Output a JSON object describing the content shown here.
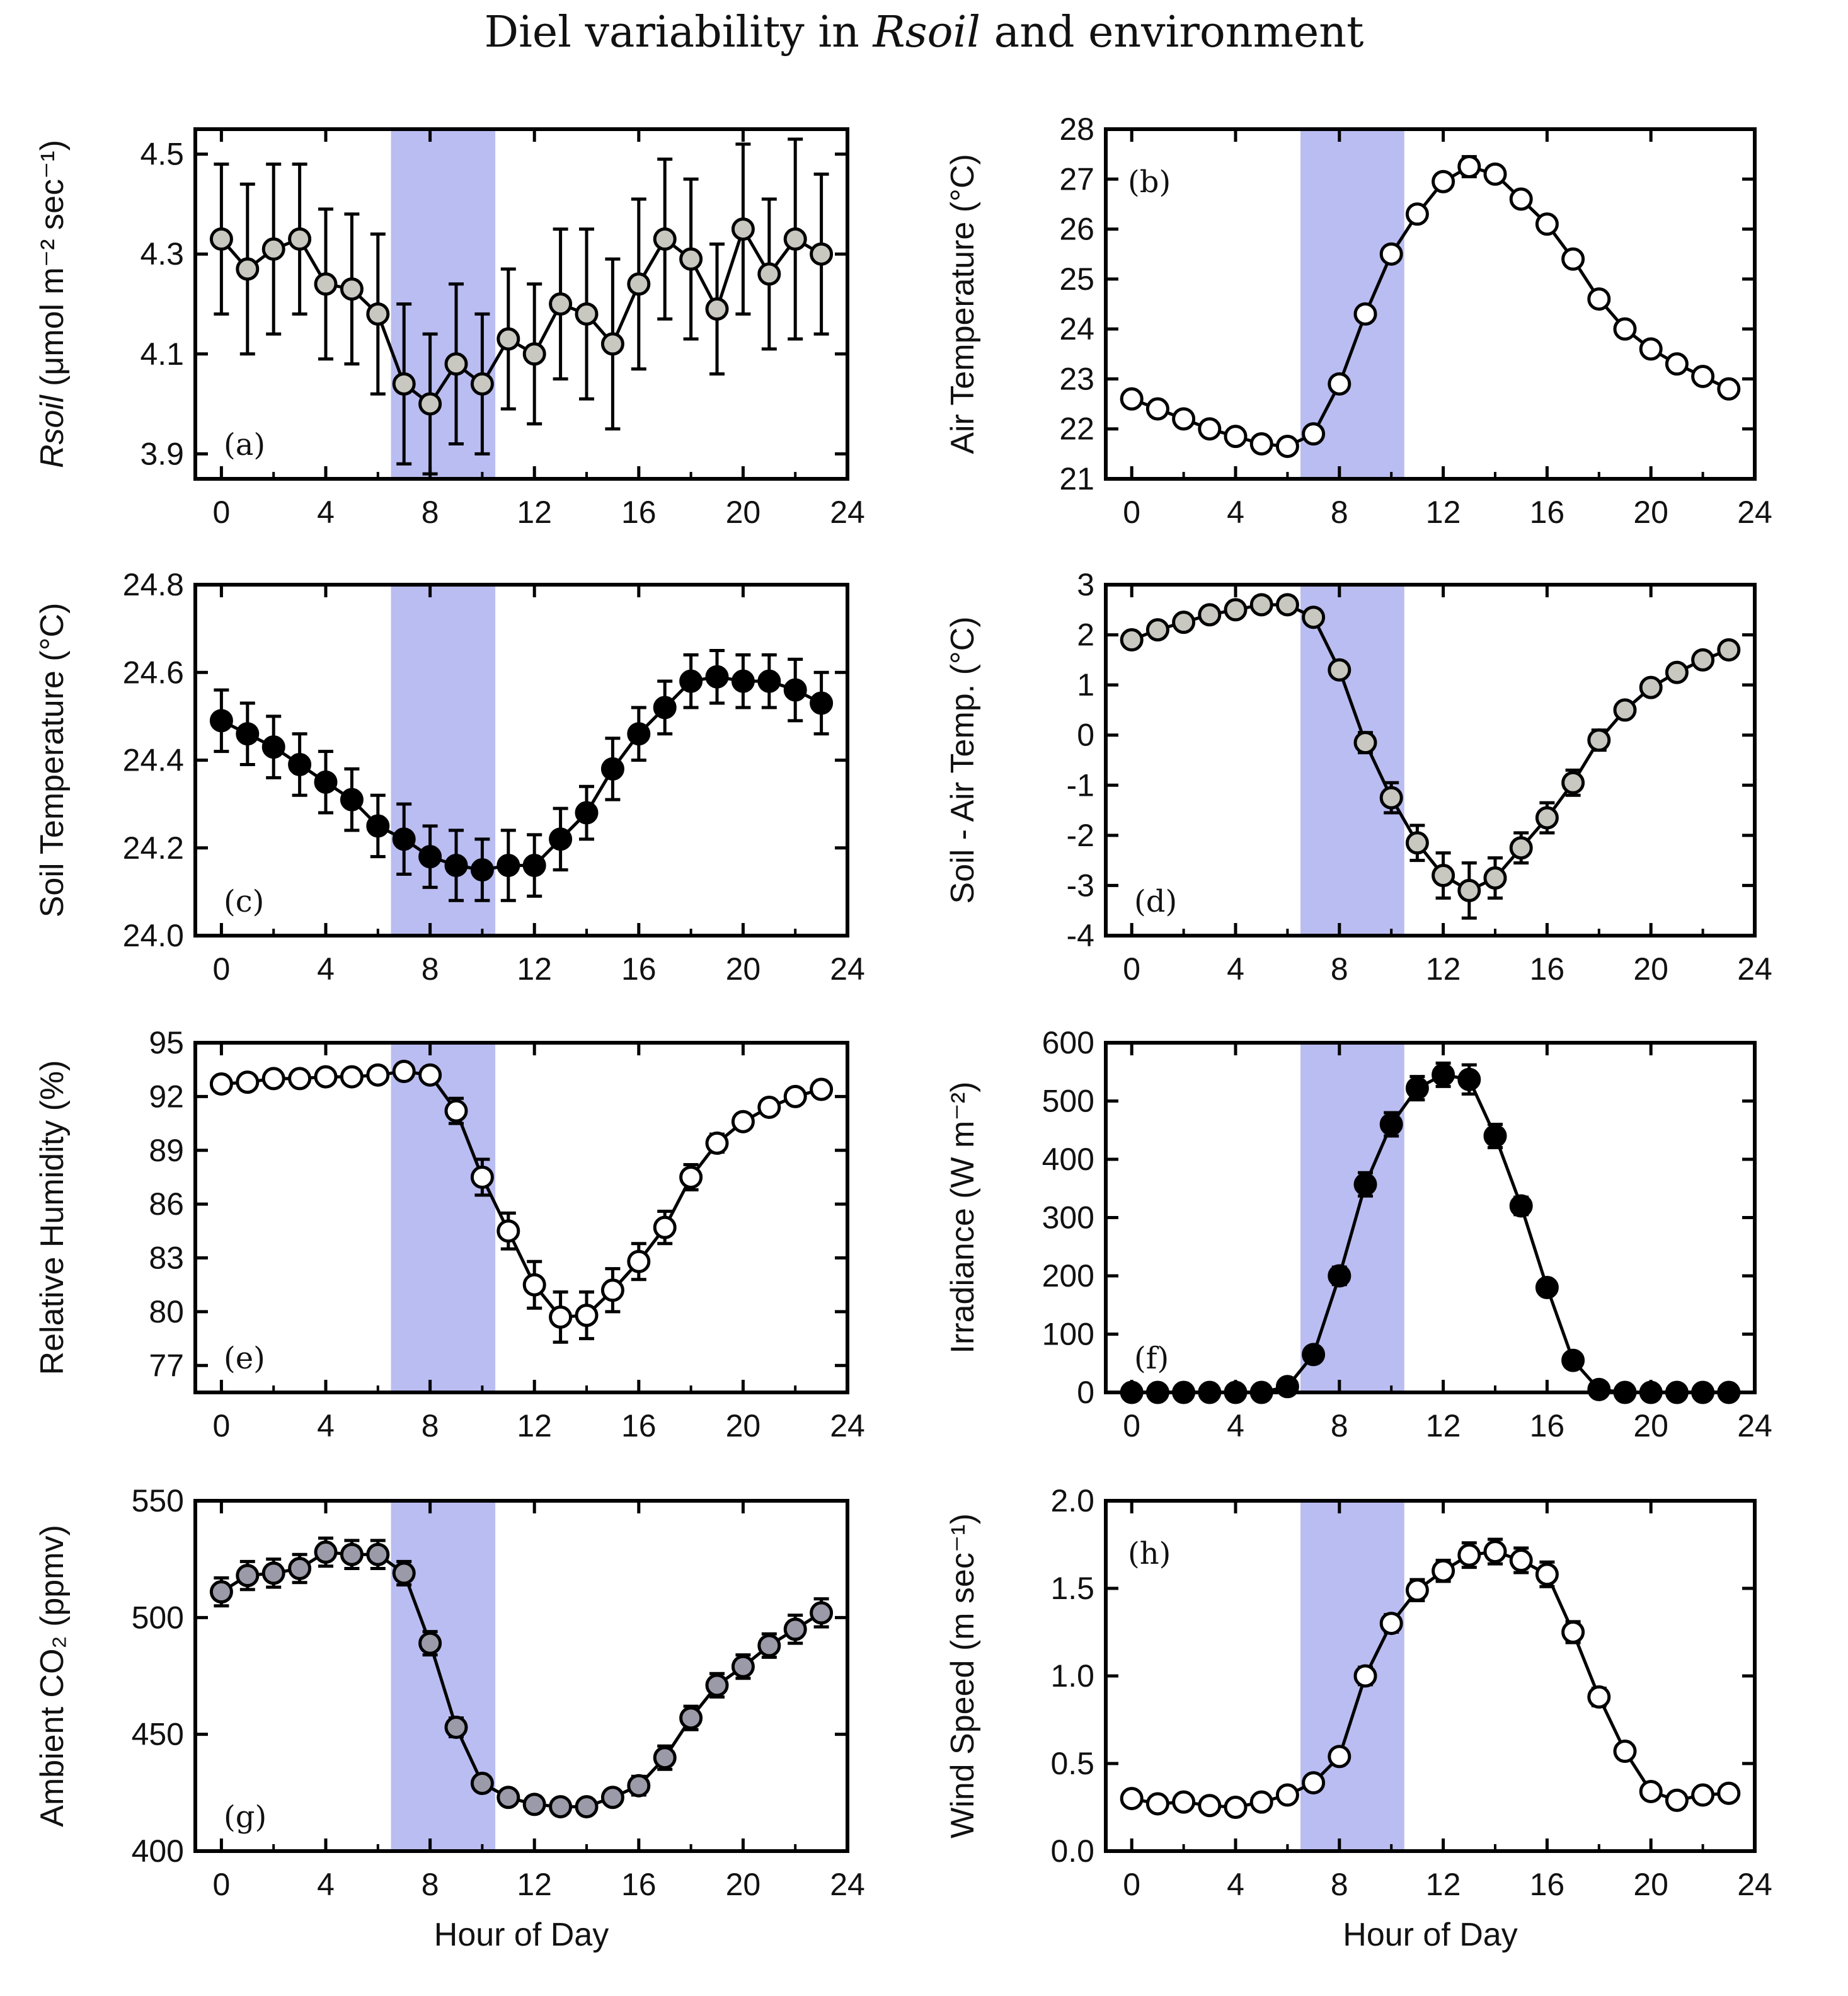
{
  "title": {
    "pre": "Diel variability in ",
    "italic": "Rsoil",
    "post": " and environment"
  },
  "colors": {
    "shade": "#b3b6ef",
    "line": "#000000",
    "fill_grey": "#c8c8c0",
    "fill_black": "#000000",
    "fill_white": "#ffffff",
    "fill_purple": "#9a9aa8"
  },
  "chart_data": [
    {
      "id": "a",
      "type": "line",
      "panel_label": "(a)",
      "ylabel_italic": "Rsoil",
      "ylabel": " (μmol m⁻² sec⁻¹)",
      "xlabel": "",
      "xlim": [
        -1,
        24
      ],
      "ylim": [
        3.85,
        4.55
      ],
      "xticks": [
        0,
        4,
        8,
        12,
        16,
        20,
        24
      ],
      "yticks": [
        "3.9",
        "4.1",
        "4.3",
        "4.5"
      ],
      "shade": [
        6.5,
        10.5
      ],
      "marker_fill": "fill_grey",
      "x": [
        0,
        1,
        2,
        3,
        4,
        5,
        6,
        7,
        8,
        9,
        10,
        11,
        12,
        13,
        14,
        15,
        16,
        17,
        18,
        19,
        20,
        21,
        22,
        23
      ],
      "y": [
        4.33,
        4.27,
        4.31,
        4.33,
        4.24,
        4.23,
        4.18,
        4.04,
        4.0,
        4.08,
        4.04,
        4.13,
        4.1,
        4.2,
        4.18,
        4.12,
        4.24,
        4.33,
        4.29,
        4.19,
        4.35,
        4.26,
        4.33,
        4.3
      ],
      "err": [
        0.15,
        0.17,
        0.17,
        0.15,
        0.15,
        0.15,
        0.16,
        0.16,
        0.14,
        0.16,
        0.14,
        0.14,
        0.14,
        0.15,
        0.17,
        0.17,
        0.17,
        0.16,
        0.16,
        0.13,
        0.17,
        0.15,
        0.2,
        0.16
      ]
    },
    {
      "id": "b",
      "type": "line",
      "panel_label": "(b)",
      "ylabel": "Air Temperature (°C)",
      "xlabel": "",
      "xlim": [
        -1,
        24
      ],
      "ylim": [
        21,
        28
      ],
      "xticks": [
        0,
        4,
        8,
        12,
        16,
        20,
        24
      ],
      "yticks": [
        "21",
        "22",
        "23",
        "24",
        "25",
        "26",
        "27",
        "28"
      ],
      "shade": [
        6.5,
        10.5
      ],
      "marker_fill": "fill_white",
      "x": [
        0,
        1,
        2,
        3,
        4,
        5,
        6,
        7,
        8,
        9,
        10,
        11,
        12,
        13,
        14,
        15,
        16,
        17,
        18,
        19,
        20,
        21,
        22,
        23
      ],
      "y": [
        22.6,
        22.4,
        22.2,
        22.0,
        21.85,
        21.7,
        21.65,
        21.9,
        22.9,
        24.3,
        25.5,
        26.3,
        26.95,
        27.25,
        27.1,
        26.6,
        26.1,
        25.4,
        24.6,
        24.0,
        23.6,
        23.3,
        23.05,
        22.8
      ],
      "err": [
        0.05,
        0.05,
        0.05,
        0.05,
        0.05,
        0.05,
        0.05,
        0.06,
        0.08,
        0.1,
        0.1,
        0.1,
        0.12,
        0.2,
        0.15,
        0.1,
        0.08,
        0.06,
        0.05,
        0.05,
        0.05,
        0.05,
        0.05,
        0.05
      ]
    },
    {
      "id": "c",
      "type": "line",
      "panel_label": "(c)",
      "ylabel": "Soil Temperature (°C)",
      "xlabel": "",
      "xlim": [
        -1,
        24
      ],
      "ylim": [
        24.0,
        24.8
      ],
      "xticks": [
        0,
        4,
        8,
        12,
        16,
        20,
        24
      ],
      "yticks": [
        "24.0",
        "24.2",
        "24.4",
        "24.6",
        "24.8"
      ],
      "shade": [
        6.5,
        10.5
      ],
      "marker_fill": "fill_black",
      "x": [
        0,
        1,
        2,
        3,
        4,
        5,
        6,
        7,
        8,
        9,
        10,
        11,
        12,
        13,
        14,
        15,
        16,
        17,
        18,
        19,
        20,
        21,
        22,
        23
      ],
      "y": [
        24.49,
        24.46,
        24.43,
        24.39,
        24.35,
        24.31,
        24.25,
        24.22,
        24.18,
        24.16,
        24.15,
        24.16,
        24.16,
        24.22,
        24.28,
        24.38,
        24.46,
        24.52,
        24.58,
        24.59,
        24.58,
        24.58,
        24.56,
        24.53
      ],
      "err": [
        0.07,
        0.07,
        0.07,
        0.07,
        0.07,
        0.07,
        0.07,
        0.08,
        0.07,
        0.08,
        0.07,
        0.08,
        0.07,
        0.07,
        0.06,
        0.07,
        0.06,
        0.06,
        0.06,
        0.06,
        0.06,
        0.06,
        0.07,
        0.07
      ]
    },
    {
      "id": "d",
      "type": "line",
      "panel_label": "(d)",
      "ylabel": "Soil - Air Temp. (°C)",
      "xlabel": "",
      "xlim": [
        -1,
        24
      ],
      "ylim": [
        -4,
        3
      ],
      "xticks": [
        0,
        4,
        8,
        12,
        16,
        20,
        24
      ],
      "yticks": [
        "-4",
        "-3",
        "-2",
        "-1",
        "0",
        "1",
        "2",
        "3"
      ],
      "shade": [
        6.5,
        10.5
      ],
      "marker_fill": "fill_grey",
      "x": [
        0,
        1,
        2,
        3,
        4,
        5,
        6,
        7,
        8,
        9,
        10,
        11,
        12,
        13,
        14,
        15,
        16,
        17,
        18,
        19,
        20,
        21,
        22,
        23
      ],
      "y": [
        1.9,
        2.1,
        2.25,
        2.4,
        2.5,
        2.6,
        2.6,
        2.35,
        1.3,
        -0.15,
        -1.25,
        -2.15,
        -2.8,
        -3.1,
        -2.85,
        -2.25,
        -1.65,
        -0.95,
        -0.1,
        0.5,
        0.95,
        1.25,
        1.5,
        1.7
      ],
      "err": [
        0.1,
        0.1,
        0.1,
        0.1,
        0.1,
        0.15,
        0.15,
        0.15,
        0.15,
        0.2,
        0.3,
        0.35,
        0.45,
        0.55,
        0.4,
        0.3,
        0.3,
        0.25,
        0.2,
        0.1,
        0.1,
        0.1,
        0.1,
        0.1
      ]
    },
    {
      "id": "e",
      "type": "line",
      "panel_label": "(e)",
      "ylabel": "Relative Humidity (%)",
      "xlabel": "",
      "xlim": [
        -1,
        24
      ],
      "ylim": [
        75.5,
        95
      ],
      "xticks": [
        0,
        4,
        8,
        12,
        16,
        20,
        24
      ],
      "yticks": [
        "77",
        "80",
        "83",
        "86",
        "89",
        "92",
        "95"
      ],
      "shade": [
        6.5,
        10.5
      ],
      "marker_fill": "fill_white",
      "x": [
        0,
        1,
        2,
        3,
        4,
        5,
        6,
        7,
        8,
        9,
        10,
        11,
        12,
        13,
        14,
        15,
        16,
        17,
        18,
        19,
        20,
        21,
        22,
        23
      ],
      "y": [
        92.7,
        92.8,
        93.0,
        93.0,
        93.1,
        93.1,
        93.2,
        93.4,
        93.2,
        91.2,
        87.5,
        84.5,
        81.5,
        79.7,
        79.8,
        81.2,
        82.8,
        84.7,
        87.5,
        89.4,
        90.6,
        91.4,
        92.0,
        92.4
      ],
      "err": [
        0.2,
        0.2,
        0.2,
        0.2,
        0.2,
        0.2,
        0.2,
        0.3,
        0.3,
        0.7,
        1.0,
        1.0,
        1.3,
        1.4,
        1.3,
        1.2,
        1.0,
        0.9,
        0.7,
        0.5,
        0.3,
        0.3,
        0.3,
        0.3
      ]
    },
    {
      "id": "f",
      "type": "line",
      "panel_label": "(f)",
      "ylabel": "Irradiance (W m⁻²)",
      "xlabel": "",
      "xlim": [
        -1,
        24
      ],
      "ylim": [
        0,
        600
      ],
      "xticks": [
        0,
        4,
        8,
        12,
        16,
        20,
        24
      ],
      "yticks": [
        "0",
        "100",
        "200",
        "300",
        "400",
        "500",
        "600"
      ],
      "shade": [
        6.5,
        10.5
      ],
      "marker_fill": "fill_black",
      "x": [
        0,
        1,
        2,
        3,
        4,
        5,
        6,
        7,
        8,
        9,
        10,
        11,
        12,
        13,
        14,
        15,
        16,
        17,
        18,
        19,
        20,
        21,
        22,
        23
      ],
      "y": [
        0,
        0,
        0,
        0,
        0,
        0,
        10,
        65,
        200,
        357,
        460,
        522,
        545,
        537,
        440,
        320,
        180,
        55,
        5,
        0,
        0,
        0,
        0,
        0
      ],
      "err": [
        0,
        0,
        0,
        0,
        0,
        0,
        3,
        10,
        15,
        20,
        20,
        20,
        20,
        25,
        20,
        15,
        12,
        8,
        3,
        0,
        0,
        0,
        0,
        0
      ]
    },
    {
      "id": "g",
      "type": "line",
      "panel_label": "(g)",
      "ylabel": "Ambient CO₂ (ppmv)",
      "xlabel": "Hour of Day",
      "xlim": [
        -1,
        24
      ],
      "ylim": [
        400,
        550
      ],
      "xticks": [
        0,
        4,
        8,
        12,
        16,
        20,
        24
      ],
      "yticks": [
        "400",
        "450",
        "500",
        "550"
      ],
      "shade": [
        6.5,
        10.5
      ],
      "marker_fill": "fill_purple",
      "x": [
        0,
        1,
        2,
        3,
        4,
        5,
        6,
        7,
        8,
        9,
        10,
        11,
        12,
        13,
        14,
        15,
        16,
        17,
        18,
        19,
        20,
        21,
        22,
        23
      ],
      "y": [
        511,
        518,
        519,
        521,
        528,
        527,
        527,
        519,
        489,
        453,
        429,
        423,
        420,
        419,
        419,
        423,
        428,
        440,
        457,
        471,
        479,
        488,
        495,
        502
      ],
      "err": [
        6,
        6,
        6,
        6,
        6,
        6,
        6,
        5,
        5,
        4,
        3,
        3,
        3,
        3,
        3,
        3,
        4,
        5,
        5,
        5,
        5,
        5,
        6,
        6
      ]
    },
    {
      "id": "h",
      "type": "line",
      "panel_label": "(h)",
      "ylabel": "Wind Speed (m sec⁻¹)",
      "xlabel": "Hour of Day",
      "xlim": [
        -1,
        24
      ],
      "ylim": [
        0,
        2.0
      ],
      "xticks": [
        0,
        4,
        8,
        12,
        16,
        20,
        24
      ],
      "yticks": [
        "0.0",
        "0.5",
        "1.0",
        "1.5",
        "2.0"
      ],
      "shade": [
        6.5,
        10.5
      ],
      "marker_fill": "fill_white",
      "x": [
        0,
        1,
        2,
        3,
        4,
        5,
        6,
        7,
        8,
        9,
        10,
        11,
        12,
        13,
        14,
        15,
        16,
        17,
        18,
        19,
        20,
        21,
        22,
        23
      ],
      "y": [
        0.3,
        0.27,
        0.28,
        0.26,
        0.25,
        0.28,
        0.32,
        0.39,
        0.54,
        1.0,
        1.3,
        1.49,
        1.6,
        1.69,
        1.71,
        1.66,
        1.58,
        1.25,
        0.88,
        0.57,
        0.34,
        0.29,
        0.32,
        0.33
      ],
      "err": [
        0.03,
        0.03,
        0.03,
        0.03,
        0.03,
        0.03,
        0.03,
        0.04,
        0.04,
        0.05,
        0.05,
        0.06,
        0.06,
        0.07,
        0.07,
        0.07,
        0.07,
        0.06,
        0.05,
        0.04,
        0.04,
        0.03,
        0.03,
        0.03
      ]
    }
  ]
}
